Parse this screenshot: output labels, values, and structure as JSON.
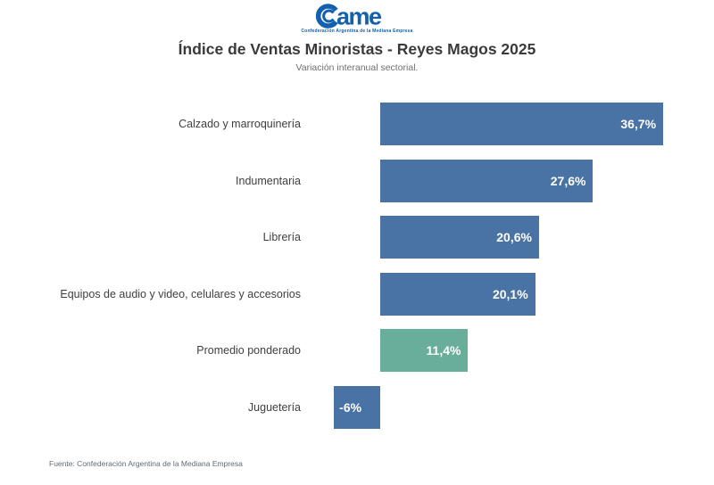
{
  "logo": {
    "brand": "ame",
    "brand_full": "came",
    "tagline": "Confederación Argentina de la Mediana Empresa",
    "color": "#1260ae"
  },
  "header": {
    "title": "Índice de Ventas Minoristas - Reyes Magos 2025",
    "subtitle": "Variación interanual sectorial."
  },
  "chart_data": {
    "type": "bar",
    "orientation": "horizontal",
    "title": "Índice de Ventas Minoristas - Reyes Magos 2025",
    "subtitle": "Variación interanual sectorial.",
    "unit": "%",
    "xlim": [
      -6,
      40
    ],
    "grid": false,
    "legend": false,
    "categories": [
      "Calzado y marroquinería",
      "Indumentaria",
      "Librería",
      "Equipos de audio y video, celulares y accesorios",
      "Promedio ponderado",
      "Juguetería"
    ],
    "values": [
      36.7,
      27.6,
      20.6,
      20.1,
      11.4,
      -6
    ],
    "value_labels": [
      "36,7%",
      "27,6%",
      "20,6%",
      "20,1%",
      "11,4%",
      "-6%"
    ],
    "bar_colors": [
      "#4a73a5",
      "#4a73a5",
      "#4a73a5",
      "#4a73a5",
      "#69ad9b",
      "#4a73a5"
    ],
    "default_bar_color": "#4a73a5",
    "highlight_bar_color": "#69ad9b",
    "highlighted_category": "Promedio ponderado"
  },
  "footer": {
    "source": "Fuente: Confederación Argentina de la Mediana Empresa"
  }
}
